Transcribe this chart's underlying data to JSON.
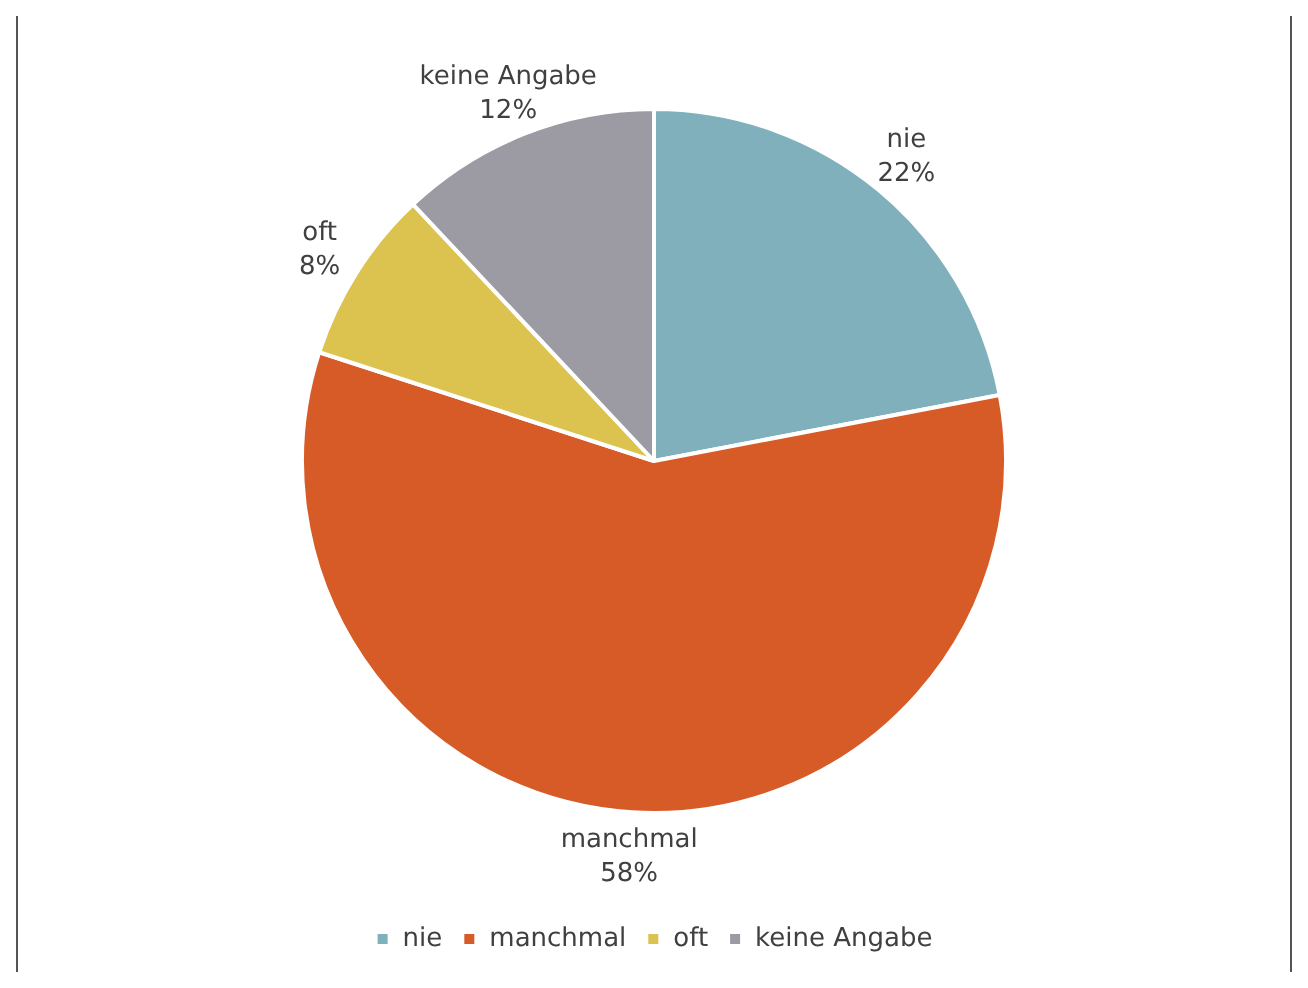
{
  "chart_data": {
    "type": "pie",
    "categories": [
      "nie",
      "manchmal",
      "oft",
      "keine Angabe"
    ],
    "values": [
      22,
      58,
      8,
      12
    ],
    "colors": [
      "#7fb0bc",
      "#d65b27",
      "#dcc24f",
      "#9c9aa3"
    ],
    "value_labels": [
      "22%",
      "58%",
      "8%",
      "12%"
    ],
    "legend": "bottom"
  }
}
